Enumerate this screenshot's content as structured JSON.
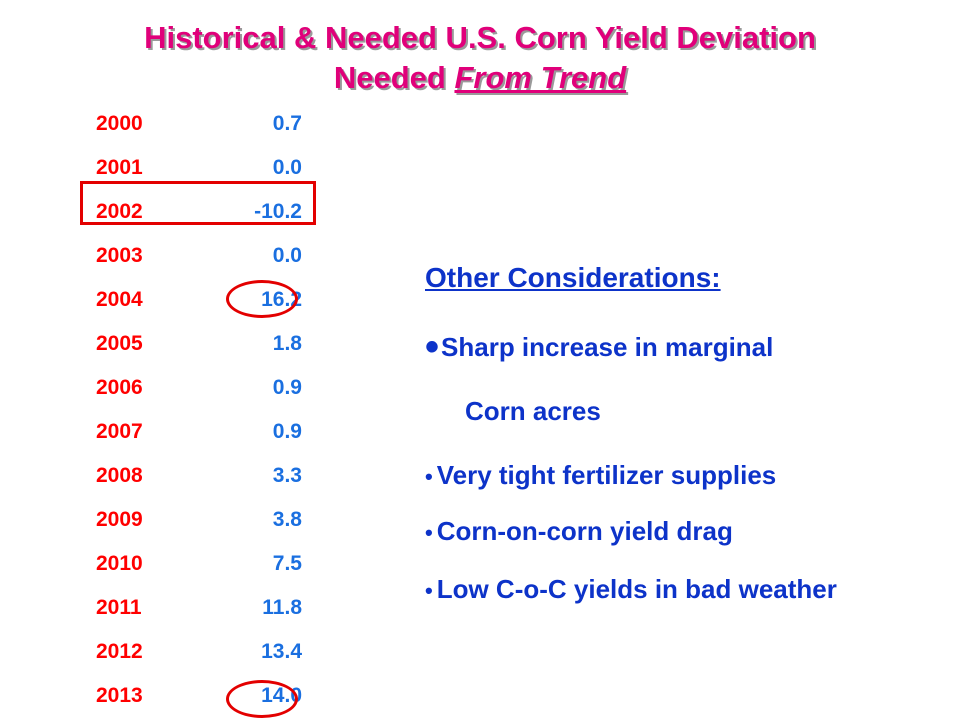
{
  "title": {
    "line1": "Historical & Needed U.S. Corn Yield Deviation",
    "line2_prefix": "Needed ",
    "line2_underlined": "From Trend"
  },
  "colors": {
    "title": "#e0007a",
    "year": "#ff0000",
    "value": "#1a6fe0",
    "text": "#0d33c9",
    "highlight": "#e30000"
  },
  "rows": [
    {
      "year": "2000",
      "value": "0.7"
    },
    {
      "year": "2001",
      "value": "0.0"
    },
    {
      "year": "2002",
      "value": "-10.2"
    },
    {
      "year": "2003",
      "value": "0.0"
    },
    {
      "year": "2004",
      "value": "16.2"
    },
    {
      "year": "2005",
      "value": "1.8"
    },
    {
      "year": "2006",
      "value": "0.9"
    },
    {
      "year": "2007",
      "value": "0.9"
    },
    {
      "year": "2008",
      "value": "3.3"
    },
    {
      "year": "2009",
      "value": "3.8"
    },
    {
      "year": "2010",
      "value": "7.5"
    },
    {
      "year": "2011",
      "value": "11.8"
    },
    {
      "year": "2012",
      "value": "13.4"
    },
    {
      "year": "2013",
      "value": "14.0"
    }
  ],
  "considerations": {
    "heading": "Other Considerations:",
    "items": [
      {
        "mark": "•",
        "text": "Sharp increase in marginal"
      },
      {
        "mark": "",
        "text": "Corn acres"
      },
      {
        "mark": "•",
        "text": "Very tight fertilizer supplies"
      },
      {
        "mark": "•",
        "text": "Corn-on-corn yield drag"
      },
      {
        "mark": "•",
        "text": "Low C-o-C yields in bad weather"
      }
    ]
  }
}
